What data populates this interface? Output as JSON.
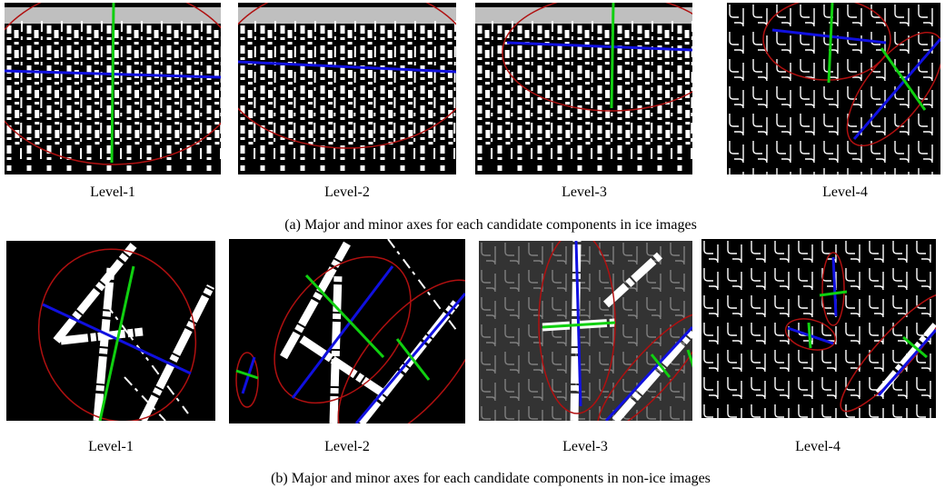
{
  "rows": [
    {
      "panels": [
        {
          "label": "Level-1"
        },
        {
          "label": "Level-2"
        },
        {
          "label": "Level-3"
        },
        {
          "label": "Level-4"
        }
      ],
      "caption": "(a) Major and minor axes for each candidate components in ice images"
    },
    {
      "panels": [
        {
          "label": "Level-1"
        },
        {
          "label": "Level-2"
        },
        {
          "label": "Level-3"
        },
        {
          "label": "Level-4"
        }
      ],
      "caption": "(b) Major and minor axes for each candidate components in non-ice images"
    }
  ]
}
